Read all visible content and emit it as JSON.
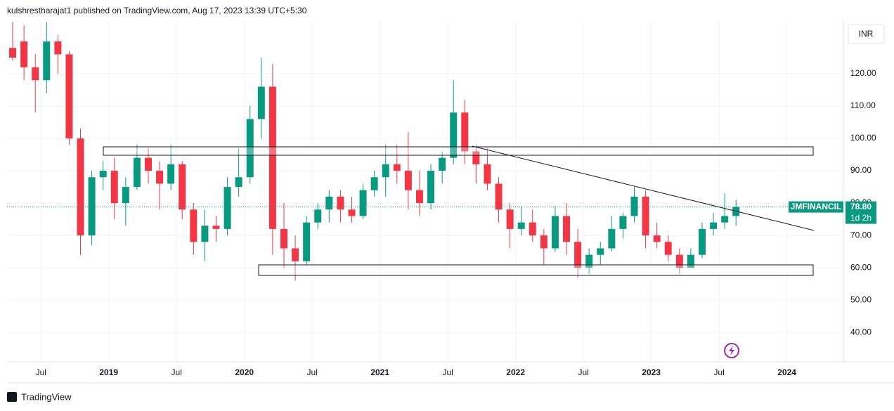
{
  "header": "kulshrestharajat1 published on TradingView.com, Aug 17, 2023 13:39 UTC+5:30",
  "currency": "INR",
  "footer": "TradingView",
  "chart_data": {
    "type": "candlestick",
    "symbol": "JMFINANCIL",
    "countdown": "1d 2h",
    "price_label": {
      "value": 78.8,
      "label": "78.80"
    },
    "up_color": "#089981",
    "down_color": "#f23645",
    "x": [
      "2018-04",
      "2018-05",
      "2018-06",
      "2018-07",
      "2018-08",
      "2018-09",
      "2018-10",
      "2018-11",
      "2018-12",
      "2019-01",
      "2019-02",
      "2019-03",
      "2019-04",
      "2019-05",
      "2019-06",
      "2019-07",
      "2019-08",
      "2019-09",
      "2019-10",
      "2019-11",
      "2019-12",
      "2020-01",
      "2020-02",
      "2020-03",
      "2020-04",
      "2020-05",
      "2020-06",
      "2020-07",
      "2020-08",
      "2020-09",
      "2020-10",
      "2020-11",
      "2020-12",
      "2021-01",
      "2021-02",
      "2021-03",
      "2021-04",
      "2021-05",
      "2021-06",
      "2021-07",
      "2021-08",
      "2021-09",
      "2021-10",
      "2021-11",
      "2021-12",
      "2022-01",
      "2022-02",
      "2022-03",
      "2022-04",
      "2022-05",
      "2022-06",
      "2022-07",
      "2022-08",
      "2022-09",
      "2022-10",
      "2022-11",
      "2022-12",
      "2023-01",
      "2023-02",
      "2023-03",
      "2023-04",
      "2023-05",
      "2023-06",
      "2023-07",
      "2023-08"
    ],
    "open": [
      128,
      130,
      122,
      118,
      130,
      126,
      100,
      70,
      88,
      90,
      80,
      85,
      94,
      90,
      86,
      92,
      78,
      68,
      73,
      72,
      85,
      88,
      106,
      116,
      72,
      66,
      62,
      74,
      78,
      82,
      78,
      76,
      84,
      88,
      92,
      90,
      84,
      80,
      90,
      94,
      108,
      96,
      92,
      86,
      78,
      72,
      74,
      70,
      66,
      76,
      68,
      60,
      64,
      66,
      72,
      76,
      82,
      70,
      68,
      64,
      60,
      64,
      72,
      74,
      76
    ],
    "high": [
      136,
      135,
      126,
      136,
      132,
      127,
      103,
      90,
      93,
      94,
      88,
      98,
      97,
      93,
      98,
      93,
      80,
      78,
      76,
      88,
      97,
      110,
      125,
      123,
      80,
      70,
      76,
      80,
      84,
      84,
      82,
      86,
      90,
      98,
      98,
      102,
      90,
      92,
      96,
      118,
      112,
      98,
      97,
      88,
      80,
      79,
      78,
      72,
      79,
      80,
      72,
      66,
      68,
      76,
      77,
      85,
      84,
      74,
      70,
      66,
      66,
      74,
      77,
      83,
      81
    ],
    "low": [
      124,
      118,
      108,
      114,
      120,
      98,
      64,
      67,
      84,
      75,
      73,
      84,
      86,
      78,
      84,
      75,
      64,
      62,
      68,
      70,
      82,
      86,
      100,
      64,
      60,
      56,
      61,
      72,
      74,
      74,
      74,
      75,
      82,
      82,
      86,
      78,
      76,
      78,
      86,
      92,
      92,
      86,
      84,
      74,
      66,
      70,
      68,
      61,
      65,
      64,
      57,
      58,
      61,
      65,
      69,
      74,
      66,
      66,
      62,
      58,
      60,
      63,
      70,
      72,
      73
    ],
    "close": [
      125,
      122,
      118,
      130,
      126,
      100,
      70,
      88,
      90,
      80,
      85,
      94,
      90,
      86,
      92,
      78,
      68,
      73,
      72,
      85,
      88,
      106,
      116,
      72,
      66,
      62,
      74,
      78,
      82,
      78,
      76,
      84,
      88,
      92,
      90,
      84,
      80,
      90,
      94,
      108,
      96,
      92,
      86,
      78,
      72,
      74,
      70,
      66,
      76,
      68,
      60,
      64,
      66,
      72,
      76,
      82,
      70,
      68,
      64,
      60,
      64,
      72,
      74,
      76,
      78.8
    ],
    "xlim": [
      "2018-04",
      "2024-06"
    ],
    "xticks": [
      {
        "value": "2018-07",
        "label": "Jul"
      },
      {
        "value": "2019-01",
        "label": "2019"
      },
      {
        "value": "2019-07",
        "label": "Jul"
      },
      {
        "value": "2020-01",
        "label": "2020"
      },
      {
        "value": "2020-07",
        "label": "Jul"
      },
      {
        "value": "2021-01",
        "label": "2021"
      },
      {
        "value": "2021-07",
        "label": "Jul"
      },
      {
        "value": "2022-01",
        "label": "2022"
      },
      {
        "value": "2022-07",
        "label": "Jul"
      },
      {
        "value": "2023-01",
        "label": "2023"
      },
      {
        "value": "2023-07",
        "label": "Jul"
      },
      {
        "value": "2024-01",
        "label": "2024"
      }
    ],
    "ylim": [
      30.9,
      136.3
    ],
    "yticks": [
      {
        "value": 40,
        "label": "40.00"
      },
      {
        "value": 50,
        "label": "50.00"
      },
      {
        "value": 60,
        "label": "60.00"
      },
      {
        "value": 70,
        "label": "70.00"
      },
      {
        "value": 80,
        "label": "80.00"
      },
      {
        "value": 90,
        "label": "90.00"
      },
      {
        "value": 100,
        "label": "100.00"
      },
      {
        "value": 110,
        "label": "110.00"
      },
      {
        "value": 120,
        "label": "120.00"
      }
    ],
    "grid": true
  }
}
